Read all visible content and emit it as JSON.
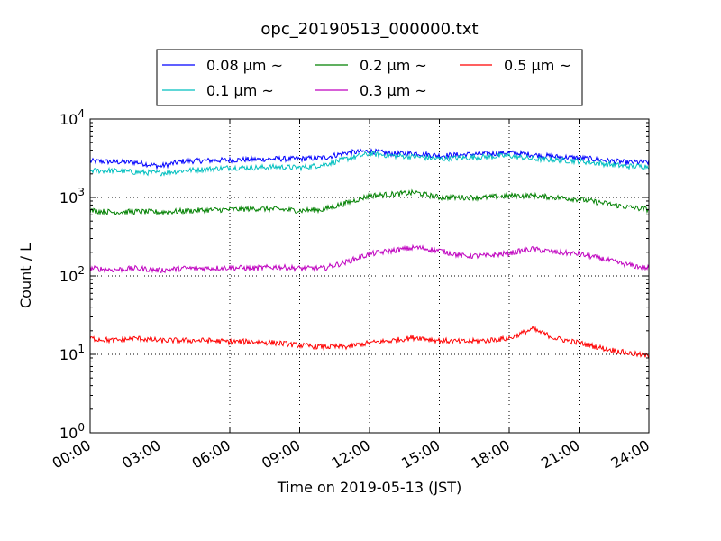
{
  "chart_data": {
    "type": "line",
    "title": "opc_20190513_000000.txt",
    "xlabel": "Time on 2019-05-13 (JST)",
    "ylabel": "Count / L",
    "y_scale": "log",
    "ylim": [
      1,
      10000
    ],
    "y_ticks": [
      {
        "value": 1,
        "base": "10",
        "exp": "0"
      },
      {
        "value": 10,
        "base": "10",
        "exp": "1"
      },
      {
        "value": 100,
        "base": "10",
        "exp": "2"
      },
      {
        "value": 1000,
        "base": "10",
        "exp": "3"
      },
      {
        "value": 10000,
        "base": "10",
        "exp": "4"
      }
    ],
    "x_ticks": [
      "00:00",
      "03:00",
      "06:00",
      "09:00",
      "12:00",
      "15:00",
      "18:00",
      "21:00",
      "24:00"
    ],
    "grid": true,
    "legend_position": "top-center, outside plot",
    "x": [
      "00:00",
      "01:00",
      "02:00",
      "03:00",
      "04:00",
      "05:00",
      "06:00",
      "07:00",
      "08:00",
      "09:00",
      "10:00",
      "11:00",
      "12:00",
      "13:00",
      "14:00",
      "15:00",
      "16:00",
      "17:00",
      "18:00",
      "19:00",
      "20:00",
      "21:00",
      "22:00",
      "23:00",
      "24:00"
    ],
    "series": [
      {
        "name": "0.08 μm ~",
        "color": "#0000ff",
        "values": [
          2900,
          2850,
          2800,
          2500,
          2900,
          2950,
          3000,
          3050,
          3100,
          3100,
          3200,
          3700,
          3900,
          3600,
          3650,
          3400,
          3500,
          3600,
          3700,
          3500,
          3300,
          3200,
          3000,
          2800,
          2800
        ]
      },
      {
        "name": "0.1 μm ~",
        "color": "#00bfbf",
        "values": [
          2200,
          2200,
          2100,
          2050,
          2200,
          2300,
          2400,
          2400,
          2450,
          2400,
          2600,
          3100,
          3600,
          3400,
          3300,
          3100,
          3200,
          3300,
          3400,
          3100,
          3000,
          2900,
          2700,
          2500,
          2500
        ]
      },
      {
        "name": "0.2 μm ~",
        "color": "#008000",
        "values": [
          680,
          650,
          660,
          650,
          670,
          690,
          700,
          720,
          710,
          680,
          700,
          850,
          1050,
          1100,
          1150,
          1000,
          1000,
          1000,
          1050,
          1050,
          1000,
          950,
          850,
          760,
          700
        ]
      },
      {
        "name": "0.3 μm ~",
        "color": "#bf00bf",
        "values": [
          125,
          120,
          125,
          118,
          125,
          125,
          128,
          125,
          130,
          125,
          125,
          150,
          190,
          210,
          230,
          210,
          180,
          180,
          195,
          220,
          200,
          190,
          165,
          140,
          125
        ]
      },
      {
        "name": "0.5 μm ~",
        "color": "#ff0000",
        "values": [
          16,
          15,
          16,
          15,
          15,
          15,
          14.5,
          14.5,
          14,
          13,
          12.5,
          12.5,
          14,
          15,
          16.5,
          15,
          14.5,
          15,
          16,
          21,
          16,
          14,
          12,
          10.5,
          9.5
        ]
      }
    ],
    "legend": [
      {
        "name": "0.08 μm ~",
        "color": "#0000ff"
      },
      {
        "name": "0.2 μm ~",
        "color": "#008000"
      },
      {
        "name": "0.5 μm ~",
        "color": "#ff0000"
      },
      {
        "name": "0.1 μm ~",
        "color": "#00bfbf"
      },
      {
        "name": "0.3 μm ~",
        "color": "#bf00bf"
      }
    ]
  }
}
